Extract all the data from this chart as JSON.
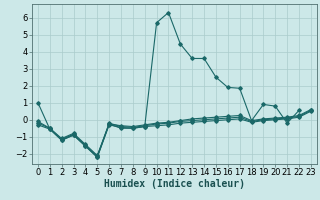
{
  "title": "",
  "xlabel": "Humidex (Indice chaleur)",
  "ylabel": "",
  "bg_color": "#cce8e8",
  "grid_color": "#aacccc",
  "line_color": "#1a6868",
  "x": [
    0,
    1,
    2,
    3,
    4,
    5,
    6,
    7,
    8,
    9,
    10,
    11,
    12,
    13,
    14,
    15,
    16,
    17,
    18,
    19,
    20,
    21,
    22,
    23
  ],
  "line1": [
    1.0,
    -0.55,
    -1.2,
    -0.9,
    -1.55,
    -2.2,
    -0.25,
    -0.5,
    -0.5,
    -0.4,
    5.7,
    6.3,
    4.45,
    3.6,
    3.6,
    2.5,
    1.9,
    1.85,
    -0.05,
    0.9,
    0.8,
    -0.2,
    0.55,
    null
  ],
  "line2": [
    -0.3,
    -0.55,
    -1.2,
    -0.9,
    -1.55,
    -2.2,
    -0.3,
    -0.45,
    -0.5,
    -0.4,
    -0.35,
    -0.3,
    -0.2,
    -0.15,
    -0.1,
    -0.05,
    0.0,
    0.05,
    -0.15,
    -0.05,
    0.0,
    0.05,
    0.15,
    0.5
  ],
  "line3": [
    -0.1,
    -0.5,
    -1.15,
    -0.85,
    -1.5,
    -2.15,
    -0.2,
    -0.4,
    -0.45,
    -0.35,
    -0.25,
    -0.2,
    -0.1,
    -0.05,
    0.0,
    0.05,
    0.1,
    0.15,
    -0.1,
    0.0,
    0.05,
    0.1,
    0.2,
    0.55
  ],
  "line4": [
    -0.2,
    -0.5,
    -1.1,
    -0.8,
    -1.45,
    -2.1,
    -0.25,
    -0.35,
    -0.4,
    -0.3,
    -0.2,
    -0.15,
    -0.05,
    0.05,
    0.1,
    0.15,
    0.2,
    0.25,
    -0.05,
    0.05,
    0.1,
    0.15,
    0.25,
    0.6
  ],
  "ylim": [
    -2.6,
    6.8
  ],
  "xlim": [
    -0.5,
    23.5
  ],
  "yticks": [
    -2,
    -1,
    0,
    1,
    2,
    3,
    4,
    5,
    6
  ],
  "xticks": [
    0,
    1,
    2,
    3,
    4,
    5,
    6,
    7,
    8,
    9,
    10,
    11,
    12,
    13,
    14,
    15,
    16,
    17,
    18,
    19,
    20,
    21,
    22,
    23
  ],
  "marker": "D",
  "marker_size": 1.8,
  "line_width": 0.8,
  "xlabel_fontsize": 7,
  "tick_fontsize": 6.0
}
